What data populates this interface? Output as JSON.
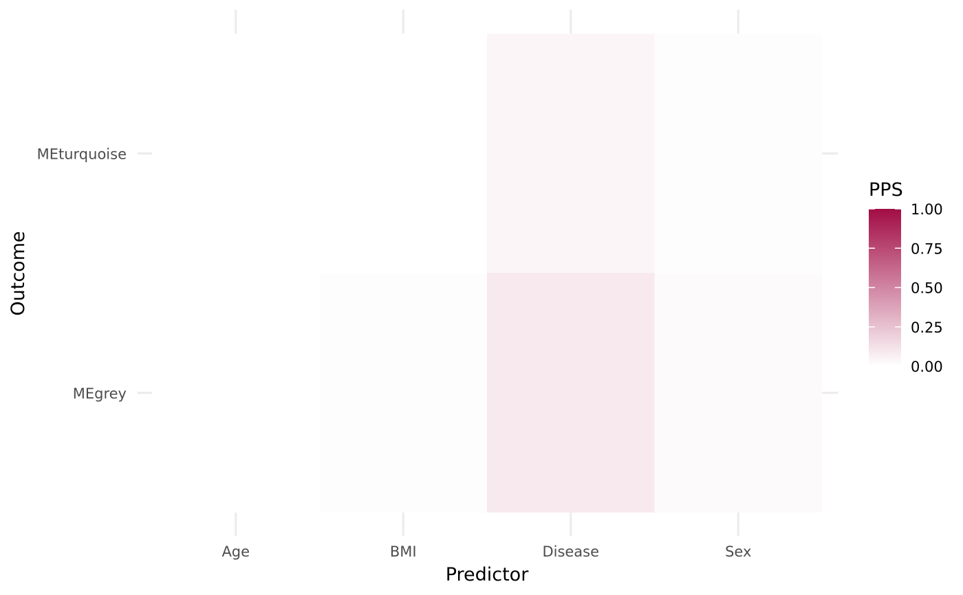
{
  "chart_data": {
    "type": "heatmap",
    "xlabel": "Predictor",
    "ylabel": "Outcome",
    "x_categories": [
      "Age",
      "BMI",
      "Disease",
      "Sex"
    ],
    "y_categories": [
      "MEgrey",
      "MEturquoise"
    ],
    "cells": [
      {
        "x": "Age",
        "y": "MEturquoise",
        "value": 0.0
      },
      {
        "x": "BMI",
        "y": "MEturquoise",
        "value": 0.0
      },
      {
        "x": "Disease",
        "y": "MEturquoise",
        "value": 0.04
      },
      {
        "x": "Sex",
        "y": "MEturquoise",
        "value": 0.01
      },
      {
        "x": "Age",
        "y": "MEgrey",
        "value": 0.0
      },
      {
        "x": "BMI",
        "y": "MEgrey",
        "value": 0.01
      },
      {
        "x": "Disease",
        "y": "MEgrey",
        "value": 0.09
      },
      {
        "x": "Sex",
        "y": "MEgrey",
        "value": 0.02
      }
    ],
    "legend": {
      "title": "PPS",
      "placement": "right",
      "breaks": [
        0.0,
        0.25,
        0.5,
        0.75,
        1.0
      ],
      "labels": [
        "0.00",
        "0.25",
        "0.50",
        "0.75",
        "1.00"
      ],
      "color_low": "#ffffff",
      "color_high": "#a20c45"
    },
    "grid": true
  }
}
